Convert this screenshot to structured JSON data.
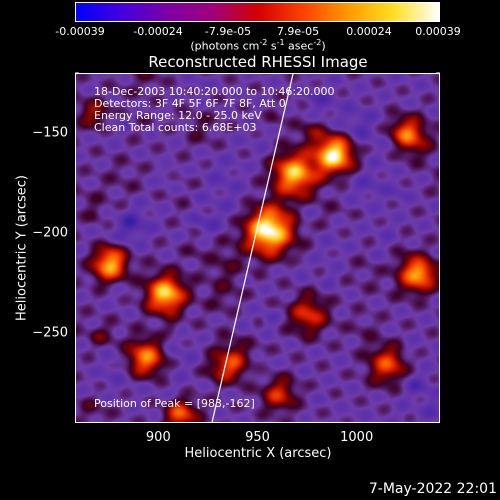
{
  "colorbar": {
    "tick_labels": [
      "-0.00039",
      "-0.00024",
      "-7.9e-05",
      "7.9e-05",
      "0.00024",
      "0.00039"
    ],
    "units_label": "(photons cm",
    "units_parts": [
      "(photons cm",
      "-2",
      " s",
      "-1",
      " asec",
      "-2",
      ")"
    ],
    "colors": [
      "#0000ff",
      "#4400dd",
      "#7a00a8",
      "#a0007a",
      "#d20000",
      "#ff4000",
      "#ff9a00",
      "#ffe020",
      "#ffffff"
    ]
  },
  "plot": {
    "title": "Reconstructed RHESSI Image",
    "info_lines": [
      "18-Dec-2003 10:40:20.000 to 10:46:20.000",
      "Detectors: 3F 4F 5F 6F 7F 8F, Att 0",
      "Energy Range: 12.0 - 25.0 keV",
      "Clean      Total counts: 6.68E+03"
    ],
    "peak_label": "Position of Peak = [983,-162]"
  },
  "chart_data": {
    "type": "heatmap",
    "title": "Reconstructed RHESSI Image",
    "xlabel": "Heliocentric X (arcsec)",
    "ylabel": "Heliocentric Y (arcsec)",
    "xlim": [
      858,
      1042
    ],
    "ylim": [
      -295,
      -120
    ],
    "x_ticks": [
      900,
      950,
      1000
    ],
    "y_ticks": [
      -150,
      -200,
      -250
    ],
    "colorbar_range": [
      -0.00039,
      0.00039
    ],
    "peak": [
      983,
      -162
    ],
    "limb_line": [
      [
        927,
        -295
      ],
      [
        968,
        -120
      ]
    ],
    "sources": [
      {
        "x": 955,
        "y": -198,
        "v": 1.0,
        "r": 11
      },
      {
        "x": 988,
        "y": -160,
        "v": 0.95,
        "r": 9
      },
      {
        "x": 968,
        "y": -170,
        "v": 0.8,
        "r": 10
      },
      {
        "x": 875,
        "y": -215,
        "v": 0.75,
        "r": 8
      },
      {
        "x": 903,
        "y": -230,
        "v": 0.85,
        "r": 9
      },
      {
        "x": 893,
        "y": -262,
        "v": 0.7,
        "r": 9
      },
      {
        "x": 935,
        "y": -265,
        "v": 0.55,
        "r": 8
      },
      {
        "x": 1025,
        "y": -150,
        "v": 0.65,
        "r": 8
      },
      {
        "x": 1030,
        "y": -220,
        "v": 0.6,
        "r": 8
      },
      {
        "x": 1015,
        "y": -265,
        "v": 0.55,
        "r": 9
      },
      {
        "x": 975,
        "y": -240,
        "v": 0.5,
        "r": 9
      },
      {
        "x": 960,
        "y": -280,
        "v": 0.45,
        "r": 8
      },
      {
        "x": 910,
        "y": -290,
        "v": 0.5,
        "r": 7
      },
      {
        "x": 868,
        "y": -140,
        "v": 0.35,
        "r": 7
      }
    ]
  },
  "stamp": "7-May-2022 22:01"
}
